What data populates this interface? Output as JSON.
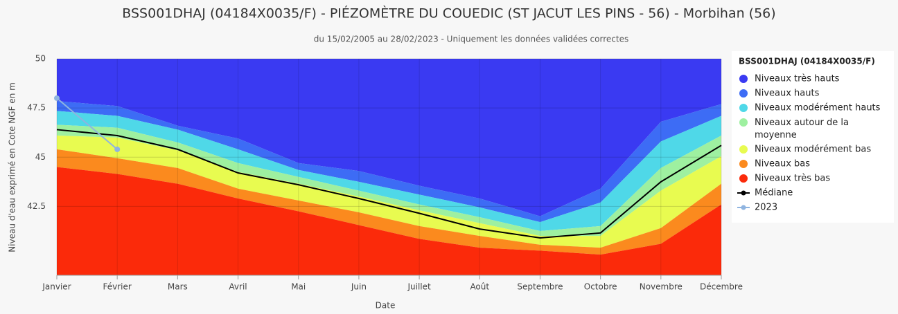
{
  "chart_data": {
    "type": "area",
    "title": "BSS001DHAJ (04184X0035/F) - PIÉZOMÈTRE DU COUEDIC (ST JACUT LES PINS - 56) - Morbihan (56)",
    "subtitle": "du 15/02/2005 au 28/02/2023 - Uniquement les données validées correctes",
    "y_label": "Niveau d'eau exprimé en Cote NGF en m",
    "x_label": "Date",
    "legend_title": "BSS001DHAJ (04184X0035/F)",
    "legend_position": "right",
    "grid": true,
    "categories": [
      "Janvier",
      "Février",
      "Mars",
      "Avril",
      "Mai",
      "Juin",
      "Juillet",
      "Août",
      "Septembre",
      "Octobre",
      "Novembre",
      "Décembre"
    ],
    "ylim": [
      39,
      50
    ],
    "yticks": [
      42.5,
      45,
      47.5,
      50
    ],
    "series": [
      {
        "name": "Niveaux très hauts",
        "type": "area",
        "color": "#3a3af2",
        "values": [
          50,
          50,
          50,
          50,
          50,
          50,
          50,
          50,
          50,
          50,
          50,
          50
        ]
      },
      {
        "name": "Niveaux hauts",
        "type": "area",
        "color": "#3d6cf5",
        "values": [
          47.85,
          47.6,
          46.6,
          45.95,
          44.7,
          44.3,
          43.55,
          42.9,
          42.0,
          43.4,
          46.8,
          47.7
        ]
      },
      {
        "name": "Niveaux modérément hauts",
        "type": "area",
        "color": "#4fd8e8",
        "values": [
          47.35,
          47.1,
          46.4,
          45.4,
          44.35,
          43.75,
          43.1,
          42.45,
          41.7,
          42.7,
          45.8,
          47.1
        ]
      },
      {
        "name": "Niveaux autour de la moyenne",
        "type": "area",
        "color": "#9ef0a0",
        "values": [
          46.65,
          46.5,
          45.75,
          44.7,
          44.0,
          43.3,
          42.6,
          41.95,
          41.25,
          41.5,
          44.45,
          46.1
        ]
      },
      {
        "name": "Niveaux modérément bas",
        "type": "area",
        "color": "#e8fb50",
        "values": [
          46.1,
          46.0,
          45.35,
          44.25,
          43.65,
          43.0,
          42.3,
          41.65,
          41.0,
          41.0,
          43.3,
          45.05
        ]
      },
      {
        "name": "Niveaux bas",
        "type": "area",
        "color": "#fb8a1e",
        "values": [
          45.4,
          44.95,
          44.45,
          43.4,
          42.8,
          42.2,
          41.5,
          41.0,
          40.55,
          40.4,
          41.4,
          43.65
        ]
      },
      {
        "name": "Niveaux très bas",
        "type": "area",
        "color": "#fb2a0a",
        "values": [
          44.5,
          44.15,
          43.65,
          42.9,
          42.25,
          41.55,
          40.85,
          40.4,
          40.25,
          40.05,
          40.6,
          42.6
        ]
      },
      {
        "name": "Médiane",
        "type": "line",
        "color": "#000000",
        "values": [
          46.4,
          46.1,
          45.4,
          44.2,
          43.6,
          42.9,
          42.15,
          41.35,
          40.9,
          41.15,
          43.75,
          45.6
        ]
      },
      {
        "name": "2023",
        "type": "line",
        "color": "#8fb4e0",
        "values": [
          48.0,
          45.4,
          null,
          null,
          null,
          null,
          null,
          null,
          null,
          null,
          null,
          null
        ]
      }
    ]
  }
}
